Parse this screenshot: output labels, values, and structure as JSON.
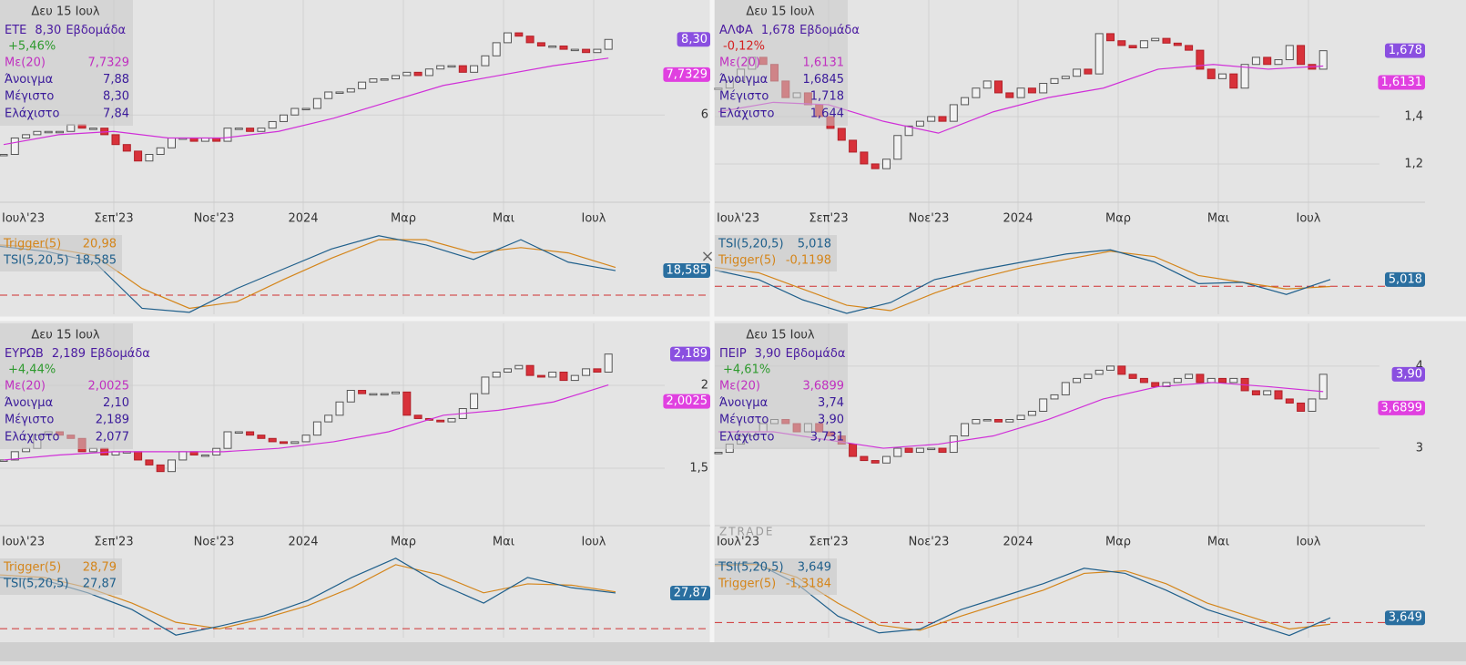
{
  "panels": [
    {
      "info": {
        "date": "Δευ 15 Ιουλ",
        "symbol": "ΕΤΕ",
        "price": "8,30",
        "period": "Εβδομάδα",
        "change": {
          "text": "+5,46%",
          "color": "#2e9a2e"
        },
        "rows": [
          {
            "label": "Με(20)",
            "value": "7,7329",
            "color": "#c030c0"
          },
          {
            "label": "Άνοιγμα",
            "value": "7,88",
            "color": "#3a1a9a"
          },
          {
            "label": "Μέγιστο",
            "value": "8,30",
            "color": "#3a1a9a"
          },
          {
            "label": "Ελάχιστο",
            "value": "7,84",
            "color": "#3a1a9a"
          }
        ]
      },
      "price_tag": "8,30",
      "ma_tag": "7,7329",
      "ylim": [
        3.4,
        9.5
      ],
      "yticks": [
        6
      ],
      "closes": [
        4.8,
        5.3,
        5.4,
        5.5,
        5.5,
        5.5,
        5.7,
        5.6,
        5.6,
        5.4,
        5.1,
        4.9,
        4.6,
        4.8,
        5.0,
        5.3,
        5.3,
        5.2,
        5.3,
        5.2,
        5.6,
        5.6,
        5.5,
        5.6,
        5.8,
        6.0,
        6.2,
        6.2,
        6.5,
        6.7,
        6.7,
        6.8,
        7.0,
        7.1,
        7.1,
        7.2,
        7.3,
        7.2,
        7.4,
        7.5,
        7.5,
        7.3,
        7.5,
        7.8,
        8.2,
        8.5,
        8.4,
        8.2,
        8.1,
        8.1,
        8.0,
        8.0,
        7.9,
        8.0,
        8.3
      ],
      "ma": [
        5.1,
        5.4,
        5.5,
        5.3,
        5.3,
        5.5,
        5.9,
        6.4,
        6.9,
        7.2,
        7.5,
        7.73
      ],
      "x_labels": [
        "Ιουλ'23",
        "Σεπ'23",
        "Νοε'23",
        "2024",
        "Μαρ",
        "Μαι",
        "Ιουλ"
      ],
      "tsi": {
        "legend": [
          {
            "label": "Trigger(5)",
            "value": "20,98",
            "color": "#d4851a"
          },
          {
            "label": "TSI(5,20,5)",
            "value": "18,585",
            "color": "#1f5f8b"
          }
        ],
        "tag": "18,585",
        "ylim": [
          -14.5,
          47.6
        ],
        "tsi": [
          37,
          33,
          25,
          -10,
          -13,
          5,
          20,
          35,
          45,
          38,
          27,
          42,
          25,
          18.585
        ],
        "trigger": [
          38,
          36,
          30,
          5,
          -10,
          -5,
          12,
          28,
          42,
          42,
          32,
          36,
          32,
          20.98
        ]
      }
    },
    {
      "info": {
        "date": "Δευ 15 Ιουλ",
        "symbol": "ΑΛΦΑ",
        "price": "1,678",
        "period": "Εβδομάδα",
        "change": {
          "text": "-0,12%",
          "color": "#d42020"
        },
        "rows": [
          {
            "label": "Με(20)",
            "value": "1,6131",
            "color": "#c030c0"
          },
          {
            "label": "Άνοιγμα",
            "value": "1,6845",
            "color": "#3a1a9a"
          },
          {
            "label": "Μέγιστο",
            "value": "1,718",
            "color": "#3a1a9a"
          },
          {
            "label": "Ελάχιστο",
            "value": "1,644",
            "color": "#3a1a9a"
          }
        ]
      },
      "price_tag": "1,678",
      "ma_tag": "1,6131",
      "ylim": [
        1.046,
        1.892
      ],
      "yticks": [
        {
          "value": 1.4,
          "label": "1,4"
        },
        {
          "value": 1.2,
          "label": "1,2"
        }
      ],
      "closes": [
        1.52,
        1.55,
        1.6,
        1.65,
        1.62,
        1.55,
        1.48,
        1.5,
        1.45,
        1.4,
        1.35,
        1.3,
        1.25,
        1.2,
        1.18,
        1.22,
        1.32,
        1.36,
        1.38,
        1.4,
        1.38,
        1.45,
        1.48,
        1.52,
        1.55,
        1.5,
        1.48,
        1.52,
        1.5,
        1.54,
        1.56,
        1.57,
        1.6,
        1.58,
        1.75,
        1.72,
        1.7,
        1.69,
        1.72,
        1.73,
        1.71,
        1.7,
        1.68,
        1.6,
        1.56,
        1.58,
        1.52,
        1.62,
        1.65,
        1.62,
        1.64,
        1.7,
        1.62,
        1.6,
        1.678
      ],
      "ma": [
        1.42,
        1.46,
        1.45,
        1.38,
        1.33,
        1.42,
        1.48,
        1.52,
        1.6,
        1.62,
        1.6,
        1.6131
      ],
      "x_labels": [
        "Ιουλ'23",
        "Σεπ'23",
        "Νοε'23",
        "2024",
        "Μαρ",
        "Μαι",
        "Ιουλ"
      ],
      "tsi": {
        "legend": [
          {
            "label": "TSI(5,20,5)",
            "value": "5,018",
            "color": "#1f5f8b"
          },
          {
            "label": "Trigger(5)",
            "value": "-0,1198",
            "color": "#d4851a"
          }
        ],
        "tag": "5,018",
        "ylim": [
          -20.7,
          40
        ],
        "tsi": [
          12,
          5,
          -10,
          -20,
          -12,
          5,
          12,
          18,
          24,
          27,
          18,
          2,
          3,
          -6,
          5.018
        ],
        "trigger": [
          14,
          10,
          -2,
          -14,
          -18,
          -5,
          6,
          14,
          20,
          26,
          22,
          8,
          3,
          -2,
          -0.1198
        ]
      }
    },
    {
      "info": {
        "date": "Δευ 15 Ιουλ",
        "symbol": "ΕΥΡΩΒ",
        "price": "2,189",
        "period": "Εβδομάδα",
        "change": {
          "text": "+4,44%",
          "color": "#2e9a2e"
        },
        "rows": [
          {
            "label": "Με(20)",
            "value": "2,0025",
            "color": "#c030c0"
          },
          {
            "label": "Άνοιγμα",
            "value": "2,10",
            "color": "#3a1a9a"
          },
          {
            "label": "Μέγιστο",
            "value": "2,189",
            "color": "#3a1a9a"
          },
          {
            "label": "Ελάχιστο",
            "value": "2,077",
            "color": "#3a1a9a"
          }
        ]
      },
      "price_tag": "2,189",
      "ma_tag": "2,0025",
      "ylim": [
        1.165,
        2.374
      ],
      "yticks": [
        2,
        {
          "value": 1.5,
          "label": "1,5"
        }
      ],
      "closes": [
        1.55,
        1.6,
        1.62,
        1.7,
        1.72,
        1.7,
        1.68,
        1.6,
        1.62,
        1.58,
        1.6,
        1.6,
        1.55,
        1.52,
        1.48,
        1.55,
        1.6,
        1.58,
        1.58,
        1.62,
        1.72,
        1.72,
        1.7,
        1.68,
        1.66,
        1.65,
        1.66,
        1.7,
        1.78,
        1.82,
        1.9,
        1.97,
        1.95,
        1.95,
        1.95,
        1.96,
        1.82,
        1.8,
        1.79,
        1.78,
        1.8,
        1.86,
        1.95,
        2.05,
        2.08,
        2.1,
        2.12,
        2.06,
        2.05,
        2.08,
        2.03,
        2.06,
        2.1,
        2.08,
        2.189
      ],
      "ma": [
        1.55,
        1.58,
        1.6,
        1.6,
        1.6,
        1.62,
        1.66,
        1.72,
        1.82,
        1.85,
        1.9,
        2.0025
      ],
      "x_labels": [
        "Ιουλ'23",
        "Σεπ'23",
        "Νοε'23",
        "2024",
        "Μαρ",
        "Μαι",
        "Ιουλ"
      ],
      "tsi": {
        "legend": [
          {
            "label": "Trigger(5)",
            "value": "28,79",
            "color": "#d4851a"
          },
          {
            "label": "TSI(5,20,5)",
            "value": "27,87",
            "color": "#1f5f8b"
          }
        ],
        "tag": "27,87",
        "ylim": [
          -7,
          57
        ],
        "tsi": [
          40,
          38,
          28,
          15,
          -5,
          2,
          10,
          22,
          40,
          55,
          35,
          20,
          40,
          32,
          27.87
        ],
        "trigger": [
          42,
          40,
          32,
          20,
          5,
          0,
          8,
          18,
          32,
          50,
          42,
          28,
          35,
          34,
          28.79
        ]
      }
    },
    {
      "info": {
        "date": "Δευ 15 Ιουλ",
        "symbol": "ΠΕΙΡ",
        "price": "3,90",
        "period": "Εβδομάδα",
        "change": {
          "text": "+4,61%",
          "color": "#2e9a2e"
        },
        "rows": [
          {
            "label": "Με(20)",
            "value": "3,6899",
            "color": "#c030c0"
          },
          {
            "label": "Άνοιγμα",
            "value": "3,74",
            "color": "#3a1a9a"
          },
          {
            "label": "Μέγιστο",
            "value": "3,90",
            "color": "#3a1a9a"
          },
          {
            "label": "Ελάχιστο",
            "value": "3,731",
            "color": "#3a1a9a"
          }
        ]
      },
      "price_tag": "3,90",
      "ma_tag": "3,6899",
      "ylim": [
        2.08,
        4.52
      ],
      "yticks": [
        4,
        3
      ],
      "closes": [
        2.95,
        3.05,
        3.15,
        3.2,
        3.3,
        3.35,
        3.3,
        3.2,
        3.3,
        3.2,
        3.15,
        3.05,
        2.9,
        2.85,
        2.82,
        2.9,
        3.0,
        2.95,
        3.0,
        3.0,
        2.95,
        3.15,
        3.3,
        3.35,
        3.35,
        3.32,
        3.35,
        3.4,
        3.45,
        3.6,
        3.65,
        3.8,
        3.85,
        3.9,
        3.95,
        4.0,
        3.9,
        3.85,
        3.8,
        3.75,
        3.8,
        3.85,
        3.9,
        3.8,
        3.85,
        3.8,
        3.85,
        3.7,
        3.65,
        3.7,
        3.6,
        3.55,
        3.45,
        3.6,
        3.9
      ],
      "ma": [
        3.2,
        3.2,
        3.1,
        3.0,
        3.05,
        3.15,
        3.35,
        3.6,
        3.75,
        3.8,
        3.75,
        3.6899
      ],
      "x_labels": [
        "Ιουλ'23",
        "Σεπ'23",
        "Νοε'23",
        "2024",
        "Μαρ",
        "Μαι",
        "Ιουλ"
      ],
      "tsi": {
        "legend": [
          {
            "label": "TSI(5,20,5)",
            "value": "3,649",
            "color": "#1f5f8b"
          },
          {
            "label": "Trigger(5)",
            "value": "-1,3184",
            "color": "#d4851a"
          }
        ],
        "tag": "3,649",
        "ylim": [
          -11.7,
          51.7
        ],
        "tsi": [
          45,
          46,
          30,
          5,
          -8,
          -5,
          10,
          20,
          30,
          42,
          38,
          25,
          10,
          0,
          -10,
          3.649
        ],
        "trigger": [
          44,
          45,
          35,
          15,
          -2,
          -6,
          5,
          15,
          25,
          38,
          40,
          30,
          15,
          5,
          -5,
          -1.3184
        ]
      }
    }
  ],
  "watermark": "ZTRADE"
}
